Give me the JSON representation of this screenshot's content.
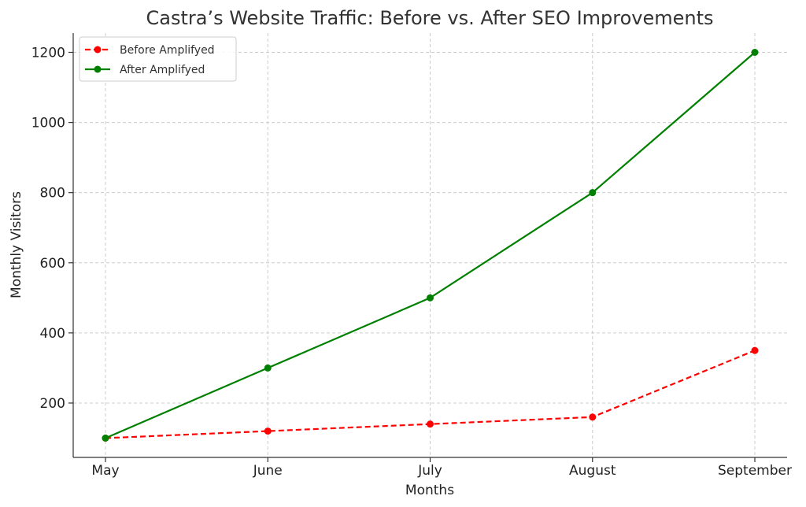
{
  "chart_data": {
    "type": "line",
    "title": "Castra’s Website Traffic: Before vs. After SEO Improvements",
    "xlabel": "Months",
    "ylabel": "Monthly Visitors",
    "categories": [
      "May",
      "June",
      "July",
      "August",
      "September"
    ],
    "ylim": [
      45,
      1255
    ],
    "yticks": [
      200,
      400,
      600,
      800,
      1000,
      1200
    ],
    "grid": true,
    "legend_position": "top-left",
    "series": [
      {
        "name": "Before Amplifyed",
        "values": [
          100,
          120,
          140,
          160,
          350
        ],
        "color": "#ff0000",
        "line_style": "dashed",
        "marker": "circle"
      },
      {
        "name": "After Amplifyed",
        "values": [
          100,
          300,
          500,
          800,
          1200
        ],
        "color": "#008000",
        "line_style": "solid",
        "marker": "circle"
      }
    ]
  }
}
